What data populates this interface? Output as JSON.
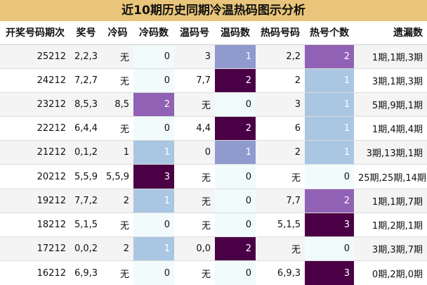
{
  "title": "近10期历史同期冷温热码图示分析",
  "colors": {
    "header_band": "#e8c57a",
    "level_0": "#f1fbfc",
    "level_1_light": "#a9c6e2",
    "level_1_mid": "#8f9bce",
    "level_2": "#9161b5",
    "level_3": "#4a0045"
  },
  "chart_data": {
    "type": "table",
    "title": "近10期历史同期冷温热码图示分析",
    "columns": [
      "开奖号码期次",
      "奖号",
      "冷码",
      "冷码数",
      "温码号",
      "温码数",
      "热码号码",
      "热号个数",
      "遗漏数"
    ],
    "rows": [
      [
        "25212",
        "2,2,3",
        "无",
        "0",
        "3",
        "1",
        "2,2",
        "2",
        "1期,1期,3期"
      ],
      [
        "24212",
        "7,2,7",
        "无",
        "0",
        "7,7",
        "2",
        "2",
        "1",
        "3期,1期,3期"
      ],
      [
        "23212",
        "8,5,3",
        "8,5",
        "2",
        "无",
        "0",
        "3",
        "1",
        "5期,9期,1期"
      ],
      [
        "22212",
        "6,4,4",
        "无",
        "0",
        "4,4",
        "2",
        "6",
        "1",
        "1期,4期,4期"
      ],
      [
        "21212",
        "0,1,2",
        "1",
        "1",
        "0",
        "1",
        "2",
        "1",
        "3期,13期,1期"
      ],
      [
        "20212",
        "5,5,9",
        "5,5,9",
        "3",
        "无",
        "0",
        "无",
        "0",
        "25期,25期,14期"
      ],
      [
        "19212",
        "7,7,2",
        "2",
        "1",
        "无",
        "0",
        "7,7",
        "2",
        "1期,1期,7期"
      ],
      [
        "18212",
        "5,1,5",
        "无",
        "0",
        "无",
        "0",
        "5,1,5",
        "3",
        "1期,2期,1期"
      ],
      [
        "17212",
        "0,0,2",
        "2",
        "1",
        "0,0",
        "2",
        "无",
        "0",
        "3期,3期,7期"
      ],
      [
        "16212",
        "6,9,3",
        "无",
        "0",
        "无",
        "0",
        "6,9,3",
        "3",
        "0期,2期,0期"
      ]
    ],
    "cell_levels": {
      "冷码数": [
        "level_0",
        "level_0",
        "level_2",
        "level_0",
        "level_1_light",
        "level_3",
        "level_1_light",
        "level_0",
        "level_1_light",
        "level_0"
      ],
      "温码数": [
        "level_1_mid",
        "level_3",
        "level_0",
        "level_3",
        "level_1_mid",
        "level_0",
        "level_0",
        "level_0",
        "level_3",
        "level_0"
      ],
      "热号个数": [
        "level_2",
        "level_1_light",
        "level_1_light",
        "level_1_light",
        "level_1_light",
        "level_0",
        "level_2",
        "level_3",
        "level_0",
        "level_3"
      ]
    }
  }
}
